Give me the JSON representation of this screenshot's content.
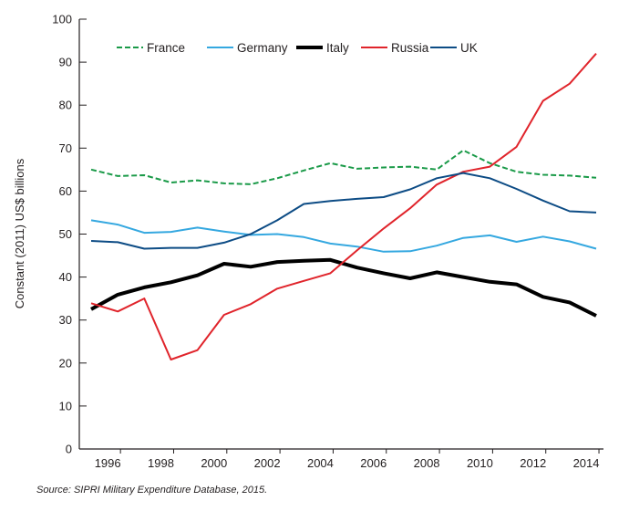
{
  "chart_data": {
    "type": "line",
    "title": "",
    "xlabel": "",
    "ylabel": "Constant (2011) US$ billions",
    "ylim": [
      0,
      100
    ],
    "yticks": [
      0,
      10,
      20,
      30,
      40,
      50,
      60,
      70,
      80,
      90,
      100
    ],
    "xticks": [
      1996,
      1998,
      2000,
      2002,
      2004,
      2006,
      2008,
      2010,
      2012,
      2014
    ],
    "grid": false,
    "legend": "top",
    "x": [
      1995,
      1996,
      1997,
      1998,
      1999,
      2000,
      2001,
      2002,
      2003,
      2004,
      2005,
      2006,
      2007,
      2008,
      2009,
      2010,
      2011,
      2012,
      2013,
      2014
    ],
    "series": [
      {
        "name": "France",
        "color": "#1a9a48",
        "dashed": true,
        "values": [
          65,
          63.5,
          63.7,
          62,
          62.5,
          61.8,
          61.6,
          63,
          64.8,
          66.5,
          65.2,
          65.5,
          65.7,
          65,
          69.5,
          66.5,
          64.5,
          63.8,
          63.6,
          63.1
        ]
      },
      {
        "name": "Germany",
        "color": "#35a8e0",
        "dashed": false,
        "values": [
          53.2,
          52.2,
          50.3,
          50.5,
          51.5,
          50.6,
          49.8,
          50,
          49.3,
          47.8,
          47.1,
          45.9,
          46,
          47.3,
          49.1,
          49.7,
          48.2,
          49.4,
          48.3,
          46.6
        ]
      },
      {
        "name": "Italy",
        "color": "#000000",
        "dashed": false,
        "values": [
          32.5,
          35.9,
          37.6,
          38.8,
          40.4,
          43.1,
          42.4,
          43.5,
          43.8,
          44,
          42.2,
          40.9,
          39.7,
          41.1,
          40,
          38.9,
          38.3,
          35.4,
          34.1,
          31
        ]
      },
      {
        "name": "Russia",
        "color": "#e0242b",
        "dashed": false,
        "values": [
          33.9,
          32,
          35,
          20.8,
          23,
          31.2,
          33.7,
          37.3,
          39.1,
          40.9,
          46.2,
          51.3,
          56,
          61.5,
          64.5,
          65.7,
          70.3,
          81,
          85,
          92
        ]
      },
      {
        "name": "UK",
        "color": "#0d4c85",
        "dashed": false,
        "values": [
          48.4,
          48.1,
          46.6,
          46.8,
          46.8,
          48,
          50,
          53.2,
          57,
          57.7,
          58.2,
          58.6,
          60.4,
          63,
          64.2,
          63,
          60.5,
          57.8,
          55.3,
          55
        ]
      }
    ],
    "source": "Source:  SIPRI Military Expenditure Database, 2015."
  }
}
